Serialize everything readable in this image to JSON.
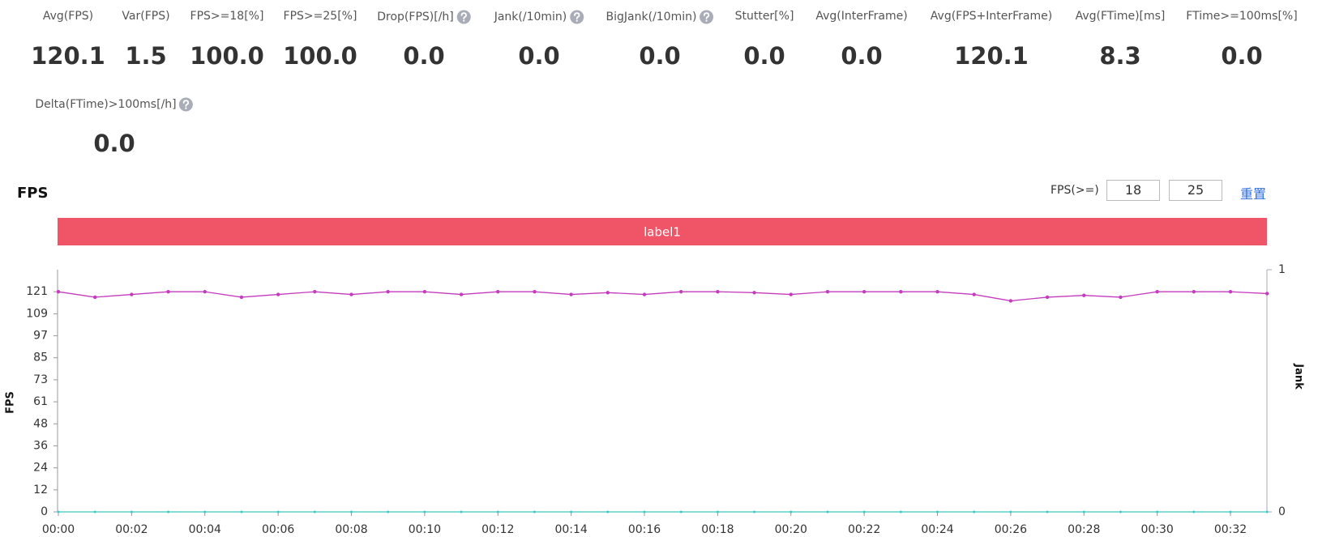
{
  "metrics": [
    {
      "label": "Avg(FPS)",
      "value": "120.1",
      "help": false
    },
    {
      "label": "Var(FPS)",
      "value": "1.5",
      "help": false
    },
    {
      "label": "FPS>=18[%]",
      "value": "100.0",
      "help": false
    },
    {
      "label": "FPS>=25[%]",
      "value": "100.0",
      "help": false
    },
    {
      "label": "Drop(FPS)[/h]",
      "value": "0.0",
      "help": true
    },
    {
      "label": "Jank(/10min)",
      "value": "0.0",
      "help": true
    },
    {
      "label": "BigJank(/10min)",
      "value": "0.0",
      "help": true
    },
    {
      "label": "Stutter[%]",
      "value": "0.0",
      "help": false
    },
    {
      "label": "Avg(InterFrame)",
      "value": "0.0",
      "help": false
    },
    {
      "label": "Avg(FPS+InterFrame)",
      "value": "120.1",
      "help": false
    },
    {
      "label": "Avg(FTime)[ms]",
      "value": "8.3",
      "help": false
    },
    {
      "label": "FTime>=100ms[%]",
      "value": "0.0",
      "help": false
    },
    {
      "label": "Delta(FTime)>100ms[/h]",
      "value": "0.0",
      "help": true
    }
  ],
  "controls": {
    "label": "FPS(>=)",
    "inputs": [
      "18",
      "25"
    ],
    "reset": "重置"
  },
  "chart_data": {
    "type": "line",
    "title": "FPS",
    "band_label": "label1",
    "band_color": "#ef5566",
    "categories": [
      "00:00",
      null,
      "00:02",
      null,
      "00:04",
      null,
      "00:06",
      null,
      "00:08",
      null,
      "00:10",
      null,
      "00:12",
      null,
      "00:14",
      null,
      "00:16",
      null,
      "00:18",
      null,
      "00:20",
      null,
      "00:22",
      null,
      "00:24",
      null,
      "00:26",
      null,
      "00:28",
      null,
      "00:30",
      null,
      "00:32",
      null
    ],
    "series": [
      {
        "name": "FPS",
        "color": "#c43bbd",
        "values": [
          121,
          118,
          119.5,
          121,
          121,
          118,
          119.5,
          121,
          119.5,
          121,
          121,
          119.5,
          121,
          121,
          119.5,
          120.5,
          119.5,
          121,
          121,
          120.5,
          119.5,
          121,
          121,
          121,
          121,
          119.5,
          116,
          118,
          119,
          118,
          121,
          121,
          121,
          120
        ]
      },
      {
        "name": "Jank",
        "color": "#3cc8c8",
        "axis": "y2",
        "values": [
          0,
          0,
          0,
          0,
          0,
          0,
          0,
          0,
          0,
          0,
          0,
          0,
          0,
          0,
          0,
          0,
          0,
          0,
          0,
          0,
          0,
          0,
          0,
          0,
          0,
          0,
          0,
          0,
          0,
          0,
          0,
          0,
          0,
          0
        ]
      }
    ],
    "ylabel": "FPS",
    "y2label": "Jank",
    "ylim": [
      0,
      133.1
    ],
    "yticks": [
      0,
      {
        "value": 12.1,
        "label": "12"
      },
      {
        "value": 24.2,
        "label": "24"
      },
      {
        "value": 36.3,
        "label": "36"
      },
      {
        "value": 48.4,
        "label": "48"
      },
      {
        "value": 60.5,
        "label": "61"
      },
      {
        "value": 72.6,
        "label": "73"
      },
      {
        "value": 84.7,
        "label": "85"
      },
      {
        "value": 96.8,
        "label": "97"
      },
      {
        "value": 108.9,
        "label": "109"
      },
      121
    ],
    "y2lim": [
      0,
      1
    ],
    "y2ticks": [
      0,
      1
    ]
  }
}
